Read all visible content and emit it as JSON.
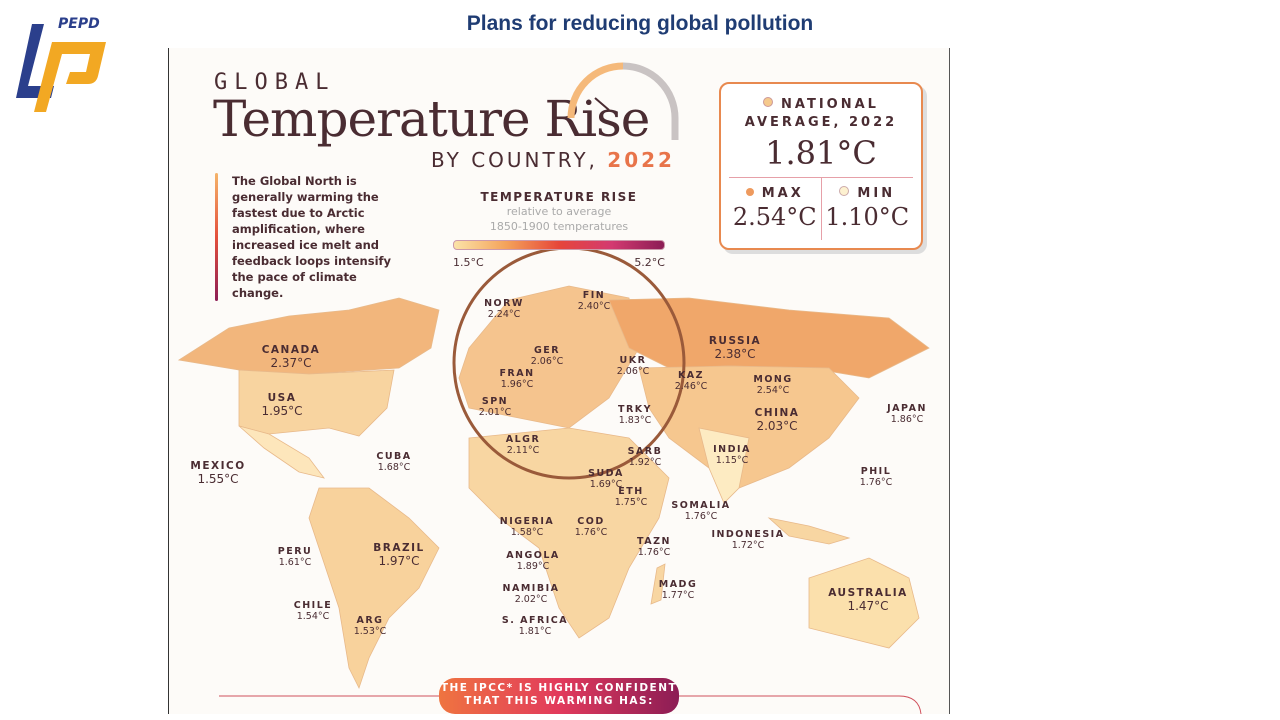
{
  "slide": {
    "title": "Plans for reducing global pollution",
    "logo_text": "PEPD"
  },
  "infographic": {
    "kicker": "GLOBAL",
    "title": "Temperature Rise",
    "subtitle_prefix": "BY COUNTRY,",
    "subtitle_year": "2022",
    "blurb": "The Global North is generally warming the fastest due to Arctic amplification, where increased ice melt and feedback loops intensify the pace of climate change.",
    "legend": {
      "title": "TEMPERATURE RISE",
      "sub1": "relative to average",
      "sub2": "1850-1900 temperatures",
      "min": "1.5°C",
      "max": "5.2°C",
      "colors": [
        "#fbe3a8",
        "#f4a25a",
        "#e6463a",
        "#d33a70",
        "#8c1d55"
      ]
    },
    "summary": {
      "avg_label_1": "NATIONAL",
      "avg_label_2": "AVERAGE, 2022",
      "avg_value": "1.81°C",
      "max_label": "MAX",
      "max_value": "2.54°C",
      "min_label": "MIN",
      "min_value": "1.10°C"
    },
    "countries": [
      {
        "name": "CANADA",
        "value": "2.37°C"
      },
      {
        "name": "USA",
        "value": "1.95°C"
      },
      {
        "name": "MEXICO",
        "value": "1.55°C"
      },
      {
        "name": "CUBA",
        "value": "1.68°C"
      },
      {
        "name": "PERU",
        "value": "1.61°C"
      },
      {
        "name": "BRAZIL",
        "value": "1.97°C"
      },
      {
        "name": "CHILE",
        "value": "1.54°C"
      },
      {
        "name": "ARG",
        "value": "1.53°C"
      },
      {
        "name": "NORW",
        "value": "2.24°C"
      },
      {
        "name": "FIN",
        "value": "2.40°C"
      },
      {
        "name": "GER",
        "value": "2.06°C"
      },
      {
        "name": "FRAN",
        "value": "1.96°C"
      },
      {
        "name": "SPN",
        "value": "2.01°C"
      },
      {
        "name": "UKR",
        "value": "2.06°C"
      },
      {
        "name": "TRKY",
        "value": "1.83°C"
      },
      {
        "name": "ALGR",
        "value": "2.11°C"
      },
      {
        "name": "SARB",
        "value": "1.92°C"
      },
      {
        "name": "KAZ",
        "value": "2.46°C"
      },
      {
        "name": "RUSSIA",
        "value": "2.38°C"
      },
      {
        "name": "MONG",
        "value": "2.54°C"
      },
      {
        "name": "CHINA",
        "value": "2.03°C"
      },
      {
        "name": "INDIA",
        "value": "1.15°C"
      },
      {
        "name": "JAPAN",
        "value": "1.86°C"
      },
      {
        "name": "PHIL",
        "value": "1.76°C"
      },
      {
        "name": "SUDA",
        "value": "1.69°C"
      },
      {
        "name": "ETH",
        "value": "1.75°C"
      },
      {
        "name": "SOMALIA",
        "value": "1.76°C"
      },
      {
        "name": "NIGERIA",
        "value": "1.58°C"
      },
      {
        "name": "COD",
        "value": "1.76°C"
      },
      {
        "name": "TAZN",
        "value": "1.76°C"
      },
      {
        "name": "INDONESIA",
        "value": "1.72°C"
      },
      {
        "name": "ANGOLA",
        "value": "1.89°C"
      },
      {
        "name": "MADG",
        "value": "1.77°C"
      },
      {
        "name": "NAMIBIA",
        "value": "2.02°C"
      },
      {
        "name": "S. AFRICA",
        "value": "1.81°C"
      },
      {
        "name": "AUSTRALIA",
        "value": "1.47°C"
      }
    ],
    "banner": {
      "line1_a": "THE IPCC* IS",
      "line1_b": "HIGHLY CONFIDENT",
      "line2": "THAT THIS WARMING HAS:"
    }
  }
}
